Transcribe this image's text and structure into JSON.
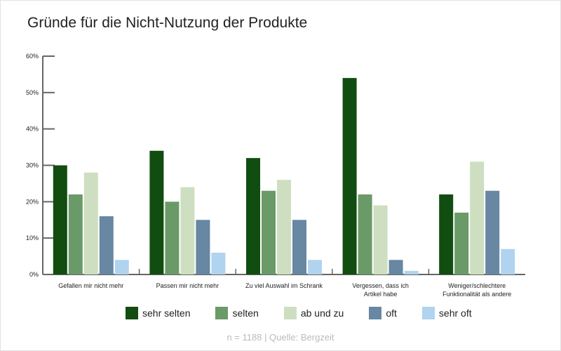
{
  "chart_data": {
    "type": "bar",
    "title": "Gründe für die Nicht-Nutzung der Produkte",
    "categories": [
      "Gefallen mir nicht mehr",
      "Passen mir nicht mehr",
      "Zu viel Auswahl im Schrank",
      "Vergessen, dass ich Artikel habe",
      "Weniger/schlechtere Funktionalität als andere"
    ],
    "category_lines": [
      [
        "Gefallen mir nicht mehr"
      ],
      [
        "Passen mir nicht mehr"
      ],
      [
        "Zu viel Auswahl im Schrank"
      ],
      [
        "Vergessen, dass ich",
        "Artikel habe"
      ],
      [
        "Weniger/schlechtere",
        "Funktionalität als andere"
      ]
    ],
    "series": [
      {
        "name": "sehr selten",
        "color": "#114d10",
        "values": [
          30,
          34,
          32,
          54,
          22
        ]
      },
      {
        "name": "selten",
        "color": "#6a9a68",
        "values": [
          22,
          20,
          23,
          22,
          17
        ]
      },
      {
        "name": "ab und zu",
        "color": "#cddfc0",
        "values": [
          28,
          24,
          26,
          19,
          31
        ]
      },
      {
        "name": "oft",
        "color": "#6787a2",
        "values": [
          16,
          15,
          15,
          4,
          23
        ]
      },
      {
        "name": "sehr oft",
        "color": "#b0d3f0",
        "values": [
          4,
          6,
          4,
          1,
          7
        ]
      }
    ],
    "ylim": [
      0,
      60
    ],
    "yticks": [
      "0%",
      "10%",
      "20%",
      "30%",
      "40%",
      "50%",
      "60%"
    ],
    "xlabel": "",
    "ylabel": "",
    "grid": false,
    "legend_position": "bottom"
  },
  "source": "n = 1188 | Quelle: Bergzeit"
}
